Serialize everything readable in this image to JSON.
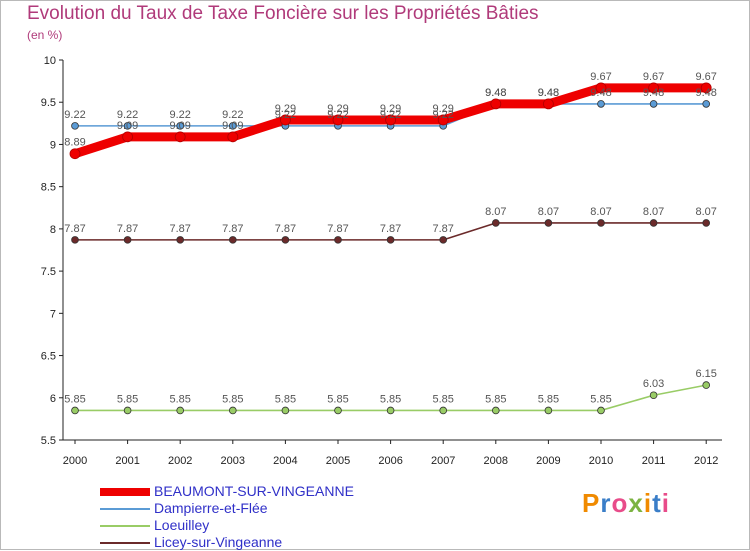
{
  "title": "Evolution du Taux de Taxe Foncière sur les Propriétés Bâties",
  "unit": "(en %)",
  "logo": "Proxiti",
  "chart_data": {
    "type": "line",
    "title": "Evolution du Taux de Taxe Foncière sur les Propriétés Bâties",
    "ylabel": "(en %)",
    "xlabel": "",
    "x": [
      "2000",
      "2001",
      "2002",
      "2003",
      "2004",
      "2005",
      "2006",
      "2007",
      "2008",
      "2009",
      "2010",
      "2011",
      "2012"
    ],
    "ylim": [
      5.5,
      10
    ],
    "yticks": [
      "5.5",
      "6",
      "6.5",
      "7",
      "7.5",
      "8",
      "8.5",
      "9",
      "9.5",
      "10"
    ],
    "grid": false,
    "legend_position": "bottom-left",
    "series": [
      {
        "name": "Dampierre-et-Flée",
        "color": "#5b9bd5",
        "values": [
          9.22,
          9.22,
          9.22,
          9.22,
          9.22,
          9.22,
          9.22,
          9.22,
          9.48,
          9.48,
          9.48,
          9.48,
          9.48
        ],
        "labels": [
          "9.22",
          "9.22",
          "9.22",
          "9.22",
          "9.22",
          "9.22",
          "9.22",
          "9.22",
          "9.48",
          "9.48",
          "9.48",
          "9.48",
          "9.48"
        ]
      },
      {
        "name": "Loeuilley",
        "color": "#99cc66",
        "values": [
          5.85,
          5.85,
          5.85,
          5.85,
          5.85,
          5.85,
          5.85,
          5.85,
          5.85,
          5.85,
          5.85,
          6.03,
          6.15
        ],
        "labels": [
          "5.85",
          "5.85",
          "5.85",
          "5.85",
          "5.85",
          "5.85",
          "5.85",
          "5.85",
          "5.85",
          "5.85",
          "5.85",
          "6.03",
          "6.15"
        ]
      },
      {
        "name": "Licey-sur-Vingeanne",
        "color": "#6b2a2a",
        "values": [
          7.87,
          7.87,
          7.87,
          7.87,
          7.87,
          7.87,
          7.87,
          7.87,
          8.07,
          8.07,
          8.07,
          8.07,
          8.07
        ],
        "labels": [
          "7.87",
          "7.87",
          "7.87",
          "7.87",
          "7.87",
          "7.87",
          "7.87",
          "7.87",
          "8.07",
          "8.07",
          "8.07",
          "8.07",
          "8.07"
        ]
      },
      {
        "name": "BEAUMONT-SUR-VINGEANNE",
        "color": "#ee0000",
        "values": [
          8.89,
          9.09,
          9.09,
          9.09,
          9.29,
          9.29,
          9.29,
          9.29,
          9.48,
          9.48,
          9.67,
          9.67,
          9.67
        ],
        "labels": [
          "8.89",
          "9.09",
          "9.09",
          "9.09",
          "9.29",
          "9.29",
          "9.29",
          "9.29",
          "9.48",
          "9.48",
          "9.67",
          "9.67",
          "9.67"
        ]
      }
    ]
  }
}
